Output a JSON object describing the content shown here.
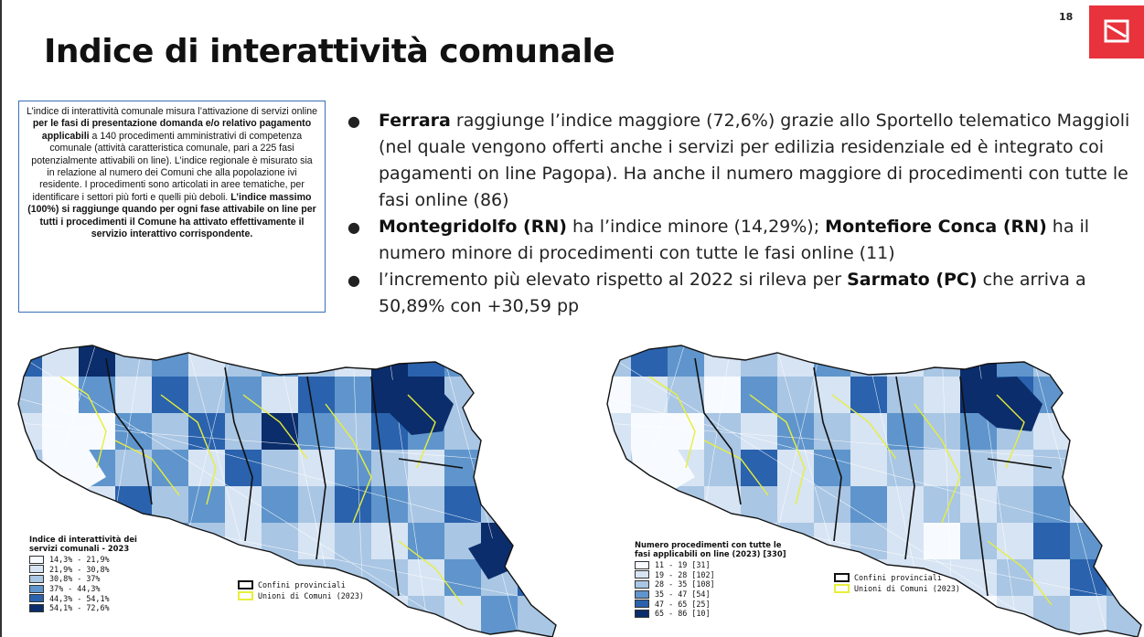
{
  "slide": {
    "number": "18"
  },
  "title": "Indice di interattività comunale",
  "info_box": {
    "p1": "L’indice di interattività comunale misura l’attivazione di servizi online ",
    "p1_bold": "per le fasi di presentazione domanda e/o relativo pagamento applicabili",
    "p2": " a 140 procedimenti amministrativi di competenza comunale (attività caratteristica comunale, pari a 225 fasi potenzialmente attivabili on line). L’indice regionale è misurato sia in relazione al numero dei Comuni che alla popolazione ivi residente. I procedimenti sono articolati in aree tematiche, per identificare i settori più forti e quelli più deboli. ",
    "p3_bold": "L’indice massimo (100%) si raggiunge quando per ogni fase attivabile on line per tutti i procedimenti il Comune ha attivato effettivamente il servizio interattivo corrispondente."
  },
  "bullets": [
    {
      "bold": "Ferrara",
      "text": " raggiunge l’indice maggiore (72,6%) grazie allo Sportello telematico Maggioli (nel quale vengono offerti anche i servizi per edilizia residenziale ed è integrato coi pagamenti on line Pagopa). Ha anche il numero maggiore di procedimenti con tutte le fasi online (86)"
    },
    {
      "bold": "Montegridolfo (RN)",
      "text": " ha l’indice minore (14,29%); ",
      "bold2": "Montefiore Conca (RN)",
      "text2": " ha il numero minore di procedimenti con tutte le fasi online (11)"
    },
    {
      "text": "l’incremento più elevato rispetto al 2022 si rileva per ",
      "bold": "Sarmato (PC)",
      "text2": " che arriva a 50,89% con +30,59 pp"
    }
  ],
  "map_left": {
    "legend_title": "Indice di interattività dei\nservizi comunali - 2023",
    "classes": [
      {
        "label": "14,3% - 21,9%",
        "color": "#f7fbff"
      },
      {
        "label": "21,9% - 30,8%",
        "color": "#d7e4f3"
      },
      {
        "label": "30,8% - 37%",
        "color": "#a9c6e4"
      },
      {
        "label": "37% - 44,3%",
        "color": "#5f95cc"
      },
      {
        "label": "44,3% - 54,1%",
        "color": "#2a62ad"
      },
      {
        "label": "54,1% - 72,6%",
        "color": "#0b2d6b"
      }
    ],
    "border_legend": {
      "provincial": "Confini provinciali",
      "unions": "Unioni di Comuni (2023)"
    }
  },
  "map_right": {
    "legend_title": "Numero procedimenti con tutte le\nfasi applicabili on line (2023) [330]",
    "classes": [
      {
        "label": "11 - 19 [31]",
        "color": "#f7fbff"
      },
      {
        "label": "19 - 28 [102]",
        "color": "#d7e4f3"
      },
      {
        "label": "28 - 35 [108]",
        "color": "#a9c6e4"
      },
      {
        "label": "35 - 47 [54]",
        "color": "#5f95cc"
      },
      {
        "label": "47 - 65 [25]",
        "color": "#2a62ad"
      },
      {
        "label": "65 - 86 [10]",
        "color": "#0b2d6b"
      }
    ],
    "border_legend": {
      "provincial": "Confini provinciali",
      "unions": "Unioni di Comuni (2023)"
    }
  },
  "colors": {
    "accent": "#e8323c",
    "box_border": "#3a6fb5",
    "union_line": "#e8ef3a"
  }
}
